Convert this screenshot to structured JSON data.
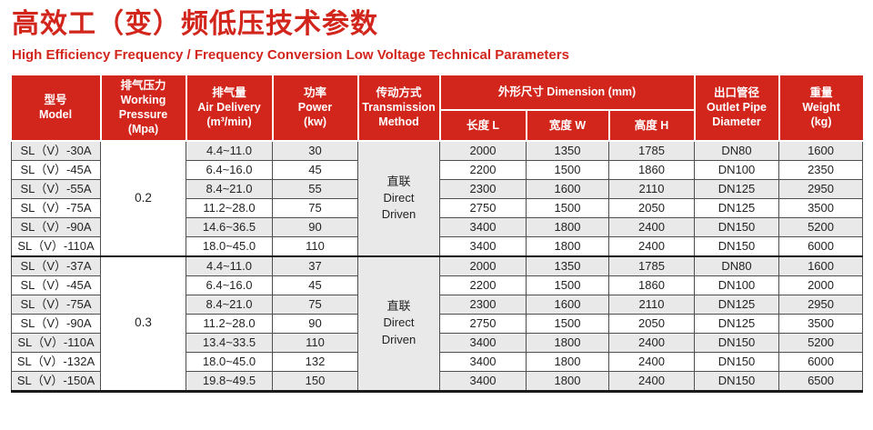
{
  "page": {
    "title": "高效工（变）频低压技术参数",
    "subtitle": "High Efficiency Frequency / Frequency Conversion Low Voltage Technical Parameters"
  },
  "colors": {
    "accent_red": "#d2251c",
    "header_text": "#ffffff",
    "alt_row_gray": "#e9e9e9",
    "grid_line": "#4f4f4f",
    "heavy_line": "#1a1a1a"
  },
  "table": {
    "header": {
      "model": "型号\nModel",
      "pressure": "排气压力\nWorking\nPressure\n(Mpa)",
      "air_delivery": "排气量\nAir Delivery\n(m³/min)",
      "power": "功率\nPower\n(kw)",
      "transmission": "传动方式\nTransmission\nMethod",
      "dimension": "外形尺寸 Dimension (mm)",
      "dim_length": "长度 L",
      "dim_width": "宽度 W",
      "dim_height": "高度 H",
      "outlet": "出口管径\nOutlet Pipe\nDiameter",
      "weight": "重量\nWeight\n(kg)"
    },
    "groups": [
      {
        "pressure": "0.2",
        "transmission": "直联\nDirect\nDriven",
        "rows": [
          {
            "model": "SL（V）-30A",
            "air": "4.4~11.0",
            "power": "30",
            "length": "2000",
            "width": "1350",
            "height": "1785",
            "outlet": "DN80",
            "weight": "1600"
          },
          {
            "model": "SL（V）-45A",
            "air": "6.4~16.0",
            "power": "45",
            "length": "2200",
            "width": "1500",
            "height": "1860",
            "outlet": "DN100",
            "weight": "2350"
          },
          {
            "model": "SL（V）-55A",
            "air": "8.4~21.0",
            "power": "55",
            "length": "2300",
            "width": "1600",
            "height": "2110",
            "outlet": "DN125",
            "weight": "2950"
          },
          {
            "model": "SL（V）-75A",
            "air": "11.2~28.0",
            "power": "75",
            "length": "2750",
            "width": "1500",
            "height": "2050",
            "outlet": "DN125",
            "weight": "3500"
          },
          {
            "model": "SL（V）-90A",
            "air": "14.6~36.5",
            "power": "90",
            "length": "3400",
            "width": "1800",
            "height": "2400",
            "outlet": "DN150",
            "weight": "5200"
          },
          {
            "model": "SL（V）-110A",
            "air": "18.0~45.0",
            "power": "110",
            "length": "3400",
            "width": "1800",
            "height": "2400",
            "outlet": "DN150",
            "weight": "6000"
          }
        ]
      },
      {
        "pressure": "0.3",
        "transmission": "直联\nDirect\nDriven",
        "rows": [
          {
            "model": "SL（V）-37A",
            "air": "4.4~11.0",
            "power": "37",
            "length": "2000",
            "width": "1350",
            "height": "1785",
            "outlet": "DN80",
            "weight": "1600"
          },
          {
            "model": "SL（V）-45A",
            "air": "6.4~16.0",
            "power": "45",
            "length": "2200",
            "width": "1500",
            "height": "1860",
            "outlet": "DN100",
            "weight": "2000"
          },
          {
            "model": "SL（V）-75A",
            "air": "8.4~21.0",
            "power": "75",
            "length": "2300",
            "width": "1600",
            "height": "2110",
            "outlet": "DN125",
            "weight": "2950"
          },
          {
            "model": "SL（V）-90A",
            "air": "11.2~28.0",
            "power": "90",
            "length": "2750",
            "width": "1500",
            "height": "2050",
            "outlet": "DN125",
            "weight": "3500"
          },
          {
            "model": "SL（V）-110A",
            "air": "13.4~33.5",
            "power": "110",
            "length": "3400",
            "width": "1800",
            "height": "2400",
            "outlet": "DN150",
            "weight": "5200"
          },
          {
            "model": "SL（V）-132A",
            "air": "18.0~45.0",
            "power": "132",
            "length": "3400",
            "width": "1800",
            "height": "2400",
            "outlet": "DN150",
            "weight": "6000"
          },
          {
            "model": "SL（V）-150A",
            "air": "19.8~49.5",
            "power": "150",
            "length": "3400",
            "width": "1800",
            "height": "2400",
            "outlet": "DN150",
            "weight": "6500"
          }
        ]
      }
    ]
  }
}
